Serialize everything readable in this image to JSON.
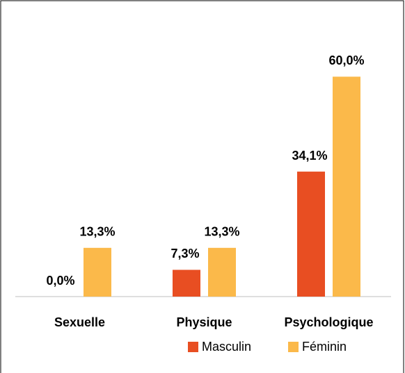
{
  "chart_data": {
    "type": "bar",
    "categories": [
      "Sexuelle",
      "Physique",
      "Psychologique"
    ],
    "series": [
      {
        "name": "Masculin",
        "color": "#e84e22",
        "values": [
          0.0,
          7.3,
          34.1
        ],
        "value_labels": [
          "0,0%",
          "7,3%",
          "34,1%"
        ]
      },
      {
        "name": "Féminin",
        "color": "#fbb94a",
        "values": [
          13.3,
          13.3,
          60.0
        ],
        "value_labels": [
          "13,3%",
          "13,3%",
          "60,0%"
        ]
      }
    ],
    "ylim": [
      0,
      65
    ],
    "legend": "bottom"
  }
}
